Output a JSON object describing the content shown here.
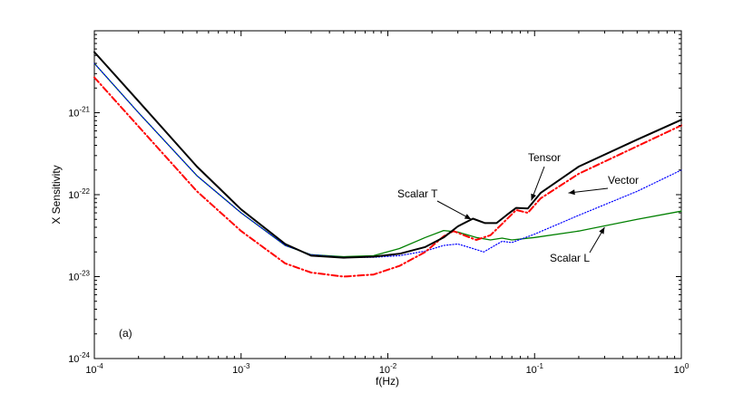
{
  "chart_data": {
    "type": "line",
    "title": "",
    "xlabel": "f(Hz)",
    "ylabel": "X Sensitivity",
    "xscale": "log",
    "yscale": "log",
    "xlim": [
      0.0001,
      1
    ],
    "ylim": [
      1e-24,
      1e-20
    ],
    "grid": false,
    "panel_label": "(a)",
    "x_ticks": [
      {
        "value": 0.0001,
        "base": "10",
        "exp": "-4"
      },
      {
        "value": 0.001,
        "base": "10",
        "exp": "-3"
      },
      {
        "value": 0.01,
        "base": "10",
        "exp": "-2"
      },
      {
        "value": 0.1,
        "base": "10",
        "exp": "-1"
      },
      {
        "value": 1,
        "base": "10",
        "exp": "0"
      }
    ],
    "y_ticks": [
      {
        "value": 1e-24,
        "base": "10",
        "exp": "-24"
      },
      {
        "value": 1e-23,
        "base": "10",
        "exp": "-23"
      },
      {
        "value": 1e-22,
        "base": "10",
        "exp": "-22"
      },
      {
        "value": 1e-21,
        "base": "10",
        "exp": "-21"
      }
    ],
    "series": [
      {
        "name": "Scalar L",
        "color": "#008000",
        "style": "solid",
        "points": [
          [
            0.0001,
            4e-21
          ],
          [
            0.0002,
            1e-21
          ],
          [
            0.0005,
            1.7e-22
          ],
          [
            0.001,
            6e-23
          ],
          [
            0.002,
            2.4e-23
          ],
          [
            0.003,
            1.85e-23
          ],
          [
            0.005,
            1.75e-23
          ],
          [
            0.008,
            1.8e-23
          ],
          [
            0.012,
            2.2e-23
          ],
          [
            0.018,
            3e-23
          ],
          [
            0.024,
            3.65e-23
          ],
          [
            0.03,
            3.5e-23
          ],
          [
            0.04,
            3e-23
          ],
          [
            0.05,
            2.8e-23
          ],
          [
            0.06,
            2.95e-23
          ],
          [
            0.07,
            2.8e-23
          ],
          [
            0.1,
            3e-23
          ],
          [
            0.2,
            3.6e-23
          ],
          [
            0.5,
            5e-23
          ],
          [
            1,
            6.3e-23
          ]
        ]
      },
      {
        "name": "Vector",
        "color": "#0000ff",
        "style": "dotted",
        "points": [
          [
            0.0001,
            4e-21
          ],
          [
            0.0002,
            1e-21
          ],
          [
            0.0005,
            1.7e-22
          ],
          [
            0.001,
            6e-23
          ],
          [
            0.002,
            2.4e-23
          ],
          [
            0.003,
            1.85e-23
          ],
          [
            0.005,
            1.72e-23
          ],
          [
            0.008,
            1.72e-23
          ],
          [
            0.012,
            1.8e-23
          ],
          [
            0.018,
            2.05e-23
          ],
          [
            0.024,
            2.4e-23
          ],
          [
            0.03,
            2.5e-23
          ],
          [
            0.038,
            2.2e-23
          ],
          [
            0.045,
            2e-23
          ],
          [
            0.06,
            2.7e-23
          ],
          [
            0.07,
            2.6e-23
          ],
          [
            0.1,
            3.3e-23
          ],
          [
            0.2,
            5.6e-23
          ],
          [
            0.5,
            1.1e-22
          ],
          [
            1,
            2e-22
          ]
        ]
      },
      {
        "name": "Tensor",
        "color": "#ff0000",
        "style": "dashdot",
        "points": [
          [
            0.0001,
            2.7e-21
          ],
          [
            0.0002,
            6.8e-22
          ],
          [
            0.0005,
            1.1e-22
          ],
          [
            0.001,
            3.6e-23
          ],
          [
            0.002,
            1.45e-23
          ],
          [
            0.003,
            1.12e-23
          ],
          [
            0.005,
            1e-23
          ],
          [
            0.008,
            1.06e-23
          ],
          [
            0.012,
            1.35e-23
          ],
          [
            0.018,
            2e-23
          ],
          [
            0.024,
            3.1e-23
          ],
          [
            0.028,
            3.6e-23
          ],
          [
            0.033,
            3.2e-23
          ],
          [
            0.04,
            2.8e-23
          ],
          [
            0.05,
            3.2e-23
          ],
          [
            0.06,
            4.4e-23
          ],
          [
            0.075,
            6.5e-23
          ],
          [
            0.09,
            6e-23
          ],
          [
            0.11,
            9e-23
          ],
          [
            0.2,
            1.8e-22
          ],
          [
            0.5,
            3.9e-22
          ],
          [
            1,
            7e-22
          ]
        ]
      },
      {
        "name": "Scalar T",
        "color": "#000000",
        "style": "solid",
        "points": [
          [
            0.0001,
            5.5e-21
          ],
          [
            0.0002,
            1.38e-21
          ],
          [
            0.0005,
            2.2e-22
          ],
          [
            0.001,
            6.6e-23
          ],
          [
            0.002,
            2.5e-23
          ],
          [
            0.003,
            1.8e-23
          ],
          [
            0.005,
            1.7e-23
          ],
          [
            0.008,
            1.75e-23
          ],
          [
            0.012,
            1.9e-23
          ],
          [
            0.018,
            2.3e-23
          ],
          [
            0.024,
            3e-23
          ],
          [
            0.03,
            4.1e-23
          ],
          [
            0.038,
            5.1e-23
          ],
          [
            0.046,
            4.5e-23
          ],
          [
            0.055,
            4.5e-23
          ],
          [
            0.065,
            5.7e-23
          ],
          [
            0.075,
            6.9e-23
          ],
          [
            0.09,
            6.8e-23
          ],
          [
            0.11,
            1.05e-22
          ],
          [
            0.2,
            2.2e-22
          ],
          [
            0.5,
            4.7e-22
          ],
          [
            1,
            8.2e-22
          ]
        ]
      }
    ],
    "annotations": [
      {
        "text": "Scalar T",
        "target_series": "Scalar T",
        "point": [
          0.037,
          5e-23
        ]
      },
      {
        "text": "Tensor",
        "target_series": "Tensor",
        "point": [
          0.095,
          8.5e-23
        ]
      },
      {
        "text": "Vector",
        "target_series": "Vector",
        "point": [
          0.17,
          1.05e-22
        ]
      },
      {
        "text": "Scalar L",
        "target_series": "Scalar L",
        "point": [
          0.3,
          4e-23
        ]
      }
    ]
  }
}
